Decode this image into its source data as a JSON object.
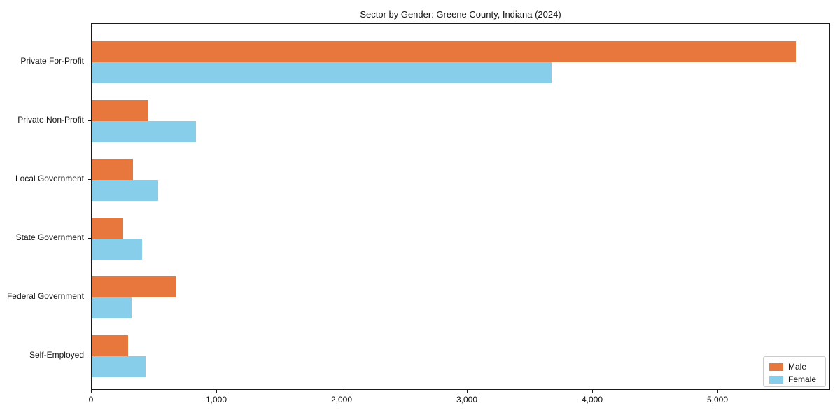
{
  "title": "Sector by Gender: Greene County, Indiana (2024)",
  "chart_data": {
    "type": "bar",
    "orientation": "horizontal",
    "title": "Sector by Gender: Greene County, Indiana (2024)",
    "xlabel": "",
    "ylabel": "",
    "categories": [
      "Private For-Profit",
      "Private Non-Profit",
      "Local Government",
      "State Government",
      "Federal Government",
      "Self-Employed"
    ],
    "series": [
      {
        "name": "Male",
        "color": "#e8773d",
        "values": [
          5620,
          450,
          330,
          250,
          670,
          290
        ]
      },
      {
        "name": "Female",
        "color": "#87ceeb",
        "values": [
          3670,
          830,
          530,
          400,
          320,
          430
        ]
      }
    ],
    "xlim": [
      0,
      5900
    ],
    "x_ticks": [
      0,
      1000,
      2000,
      3000,
      4000,
      5000
    ],
    "x_tick_labels": [
      "0",
      "1,000",
      "2,000",
      "3,000",
      "4,000",
      "5,000"
    ],
    "grid": false,
    "legend_position": "lower right",
    "axis_color": "#1a1a1a",
    "text_color": "#111111"
  }
}
